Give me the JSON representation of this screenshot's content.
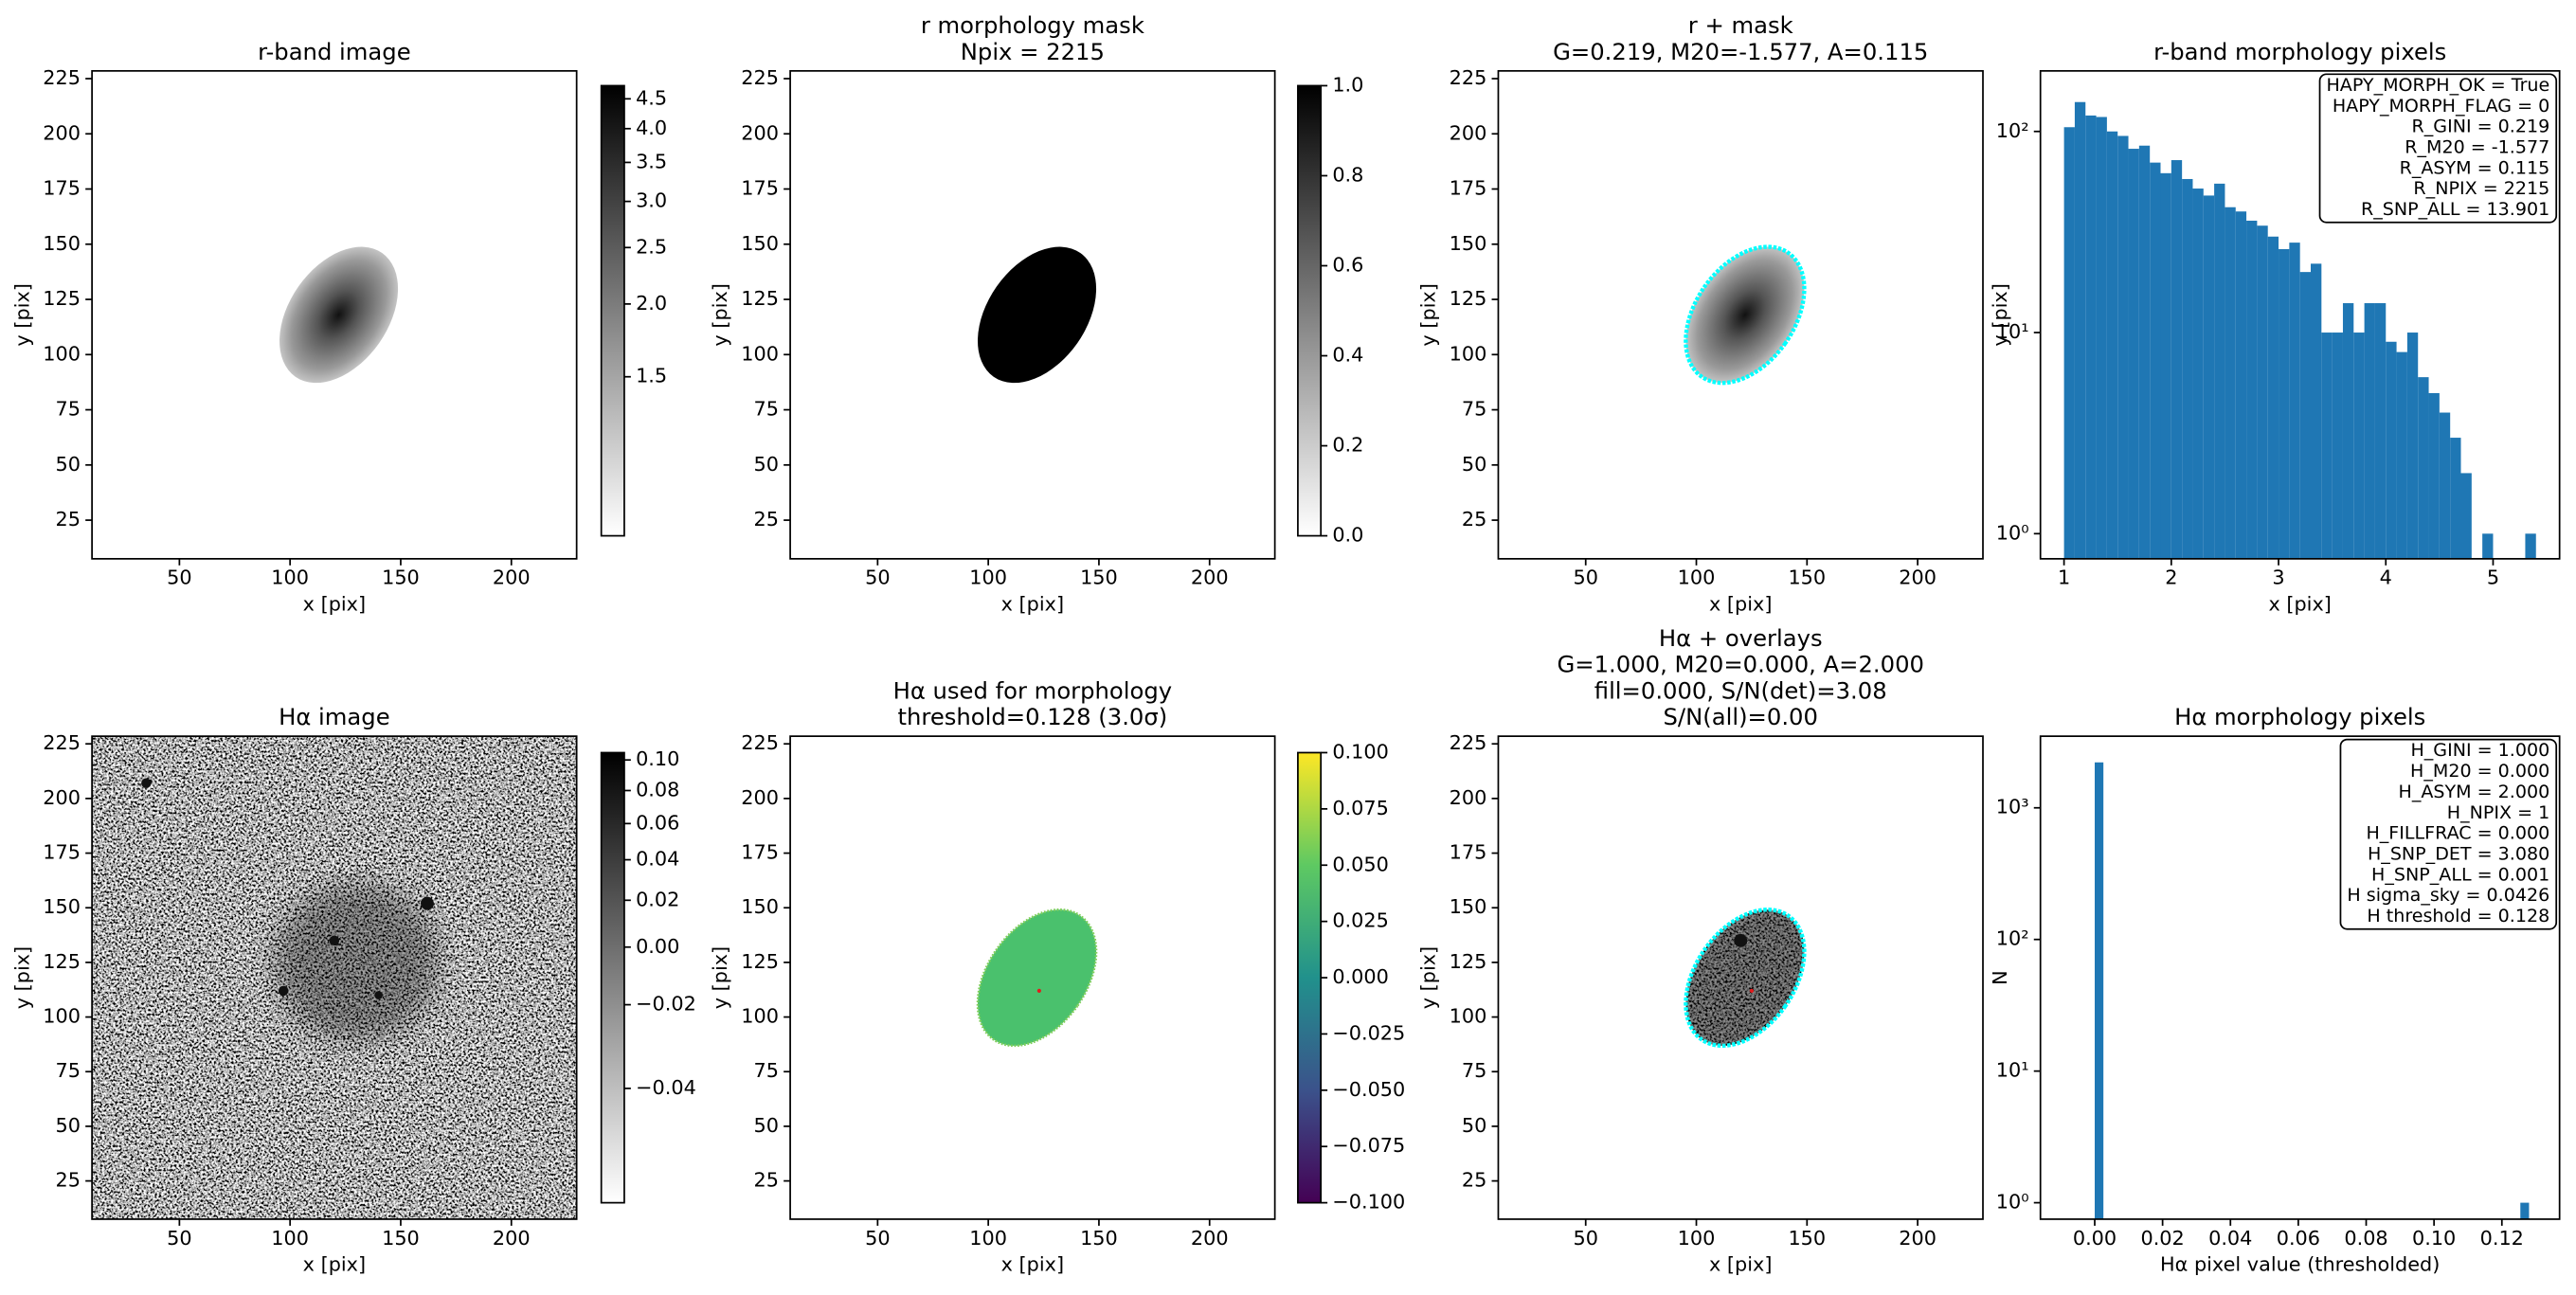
{
  "chart_data": [
    {
      "type": "image",
      "title": "r-band image",
      "xlabel": "x [pix]",
      "ylabel": "y [pix]",
      "xlim": [
        10.5,
        229.5
      ],
      "ylim": [
        7.5,
        228.5
      ],
      "xticks": [
        50,
        100,
        150,
        200
      ],
      "yticks": [
        25,
        50,
        75,
        100,
        125,
        150,
        175,
        200,
        225
      ],
      "colorbar": {
        "cmap": "gray_r",
        "scale": "log",
        "clim": [
          0.8,
          4.74
        ],
        "ticks": [
          1.5,
          {
            "value": 2,
            "label": "2.0"
          },
          2.5,
          {
            "value": 3,
            "label": "3.0"
          },
          3.5,
          {
            "value": 4,
            "label": "4.0"
          },
          4.5
        ]
      }
    },
    {
      "type": "image",
      "title": [
        "r morphology mask",
        "Npix = 2215"
      ],
      "xlabel": "x [pix]",
      "ylabel": "y [pix]",
      "xlim": [
        10.5,
        229.5
      ],
      "ylim": [
        7.5,
        228.5
      ],
      "xticks": [
        50,
        100,
        150,
        200
      ],
      "yticks": [
        25,
        50,
        75,
        100,
        125,
        150,
        175,
        200,
        225
      ],
      "colorbar": {
        "cmap": "gray_r",
        "scale": "linear",
        "clim": [
          0,
          1
        ],
        "ticks": [
          {
            "value": 0,
            "label": "0.0"
          },
          0.2,
          0.4,
          0.6,
          0.8,
          {
            "value": 1,
            "label": "1.0"
          }
        ]
      }
    },
    {
      "type": "image",
      "title": [
        "r + mask",
        "G=0.219, M20=-1.577, A=0.115"
      ],
      "xlabel": "x [pix]",
      "ylabel": "y [pix]",
      "xlim": [
        10.5,
        229.5
      ],
      "ylim": [
        7.5,
        228.5
      ],
      "xticks": [
        50,
        100,
        150,
        200
      ],
      "yticks": [
        25,
        50,
        75,
        100,
        125,
        150,
        175,
        200,
        225
      ]
    },
    {
      "type": "histogram",
      "title": "r-band morphology pixels",
      "xlabel": "x [pix]",
      "ylabel": "y [pix]",
      "color": "#1f77b4",
      "ylog": true,
      "bins": [
        1.0,
        1.1,
        1.2,
        1.3,
        1.4,
        1.5,
        1.6,
        1.7,
        1.8,
        1.9,
        2.0,
        2.1,
        2.2,
        2.3,
        2.4,
        2.5,
        2.6,
        2.7,
        2.8,
        2.9,
        3.0,
        3.1,
        3.2,
        3.3,
        3.4,
        3.5,
        3.6,
        3.7,
        3.8,
        3.9,
        4.0,
        4.1,
        4.2,
        4.3,
        4.4,
        4.5,
        4.6,
        4.7,
        4.8,
        4.9,
        5.0,
        5.1,
        5.2,
        5.3,
        5.4
      ],
      "values": [
        105,
        140,
        120,
        118,
        100,
        95,
        82,
        85,
        70,
        62,
        72,
        58,
        52,
        48,
        55,
        42,
        40,
        36,
        34,
        30,
        26,
        28,
        20,
        22,
        10,
        10,
        14,
        10,
        14,
        14,
        9,
        8,
        10,
        6,
        5,
        4,
        3,
        2,
        0,
        1,
        0,
        0,
        0,
        1
      ],
      "xlim": [
        0.78,
        5.62
      ],
      "ylim": [
        0.75,
        200
      ],
      "xticks": [
        1,
        2,
        3,
        4,
        5
      ],
      "yticks": [
        {
          "value": 1,
          "label": "10⁰"
        },
        {
          "value": 10,
          "label": "10¹"
        },
        {
          "value": 100,
          "label": "10²"
        }
      ],
      "annotation": [
        "HAPY_MORPH_OK = True",
        "HAPY_MORPH_FLAG = 0",
        "R_GINI = 0.219",
        "R_M20 = -1.577",
        "R_ASYM = 0.115",
        "R_NPIX = 2215",
        "R_SNP_ALL = 13.901"
      ]
    },
    {
      "type": "image",
      "title": "Hα image",
      "xlabel": "x [pix]",
      "ylabel": "y [pix]",
      "xlim": [
        10.5,
        229.5
      ],
      "ylim": [
        7.5,
        228.5
      ],
      "xticks": [
        50,
        100,
        150,
        200
      ],
      "yticks": [
        25,
        50,
        75,
        100,
        125,
        150,
        175,
        200,
        225
      ],
      "colorbar": {
        "cmap": "gray_r",
        "scale": "sqrt",
        "clim": [
          -0.05,
          0.105
        ],
        "ticks": [
          {
            "value": 0.1,
            "label": "0.10"
          },
          0.08,
          0.06,
          0.04,
          0.02,
          {
            "value": 0,
            "label": "0.00"
          },
          {
            "value": -0.02,
            "label": "−0.02"
          },
          {
            "value": -0.04,
            "label": "−0.04"
          }
        ]
      }
    },
    {
      "type": "image",
      "title": [
        "Hα used for morphology",
        "threshold=0.128 (3.0σ)"
      ],
      "xlabel": "x [pix]",
      "ylabel": "y [pix]",
      "xlim": [
        10.5,
        229.5
      ],
      "ylim": [
        7.5,
        228.5
      ],
      "xticks": [
        50,
        100,
        150,
        200
      ],
      "yticks": [
        25,
        50,
        75,
        100,
        125,
        150,
        175,
        200,
        225
      ],
      "colorbar": {
        "cmap": "viridis",
        "scale": "linear",
        "clim": [
          -0.1,
          0.1
        ],
        "ticks": [
          {
            "value": 0.1,
            "label": "0.100"
          },
          0.075,
          {
            "value": 0.05,
            "label": "0.050"
          },
          0.025,
          {
            "value": 0,
            "label": "0.000"
          },
          {
            "value": -0.025,
            "label": "−0.025"
          },
          {
            "value": -0.05,
            "label": "−0.050"
          },
          {
            "value": -0.075,
            "label": "−0.075"
          },
          {
            "value": -0.1,
            "label": "−0.100"
          }
        ]
      }
    },
    {
      "type": "image",
      "title": [
        "Hα + overlays",
        "G=1.000, M20=0.000, A=2.000",
        "fill=0.000, S/N(det)=3.08",
        "S/N(all)=0.00"
      ],
      "xlabel": "x [pix]",
      "ylabel": "y [pix]",
      "xlim": [
        10.5,
        229.5
      ],
      "ylim": [
        7.5,
        228.5
      ],
      "xticks": [
        50,
        100,
        150,
        200
      ],
      "yticks": [
        25,
        50,
        75,
        100,
        125,
        150,
        175,
        200,
        225
      ]
    },
    {
      "type": "histogram",
      "title": "Hα morphology pixels",
      "xlabel": "Hα pixel value (thresholded)",
      "ylabel": "N",
      "color": "#1f77b4",
      "ylog": true,
      "bins": [
        0,
        0.00256,
        0.00512,
        0.00768,
        0.01024,
        0.0128,
        0.01536,
        0.01792,
        0.02048,
        0.02304,
        0.0256,
        0.02816,
        0.03072,
        0.03328,
        0.03584,
        0.0384,
        0.04096,
        0.04352,
        0.04608,
        0.04864,
        0.0512,
        0.05376,
        0.05632,
        0.05888,
        0.06144,
        0.064,
        0.06656,
        0.06912,
        0.07168,
        0.07424,
        0.0768,
        0.07936,
        0.08192,
        0.08448,
        0.08704,
        0.0896,
        0.09216,
        0.09472,
        0.09728,
        0.09984,
        0.1024,
        0.10496,
        0.10752,
        0.11008,
        0.11264,
        0.1152,
        0.11776,
        0.12032,
        0.12288,
        0.12544,
        0.128
      ],
      "values": [
        2214,
        0,
        0,
        0,
        0,
        0,
        0,
        0,
        0,
        0,
        0,
        0,
        0,
        0,
        0,
        0,
        0,
        0,
        0,
        0,
        0,
        0,
        0,
        0,
        0,
        0,
        0,
        0,
        0,
        0,
        0,
        0,
        0,
        0,
        0,
        0,
        0,
        0,
        0,
        0,
        0,
        0,
        0,
        0,
        0,
        0,
        0,
        0,
        0,
        1
      ],
      "xlim": [
        -0.016,
        0.137
      ],
      "ylim": [
        0.75,
        3500
      ],
      "xticks": [
        {
          "value": 0,
          "label": "0.00"
        },
        0.02,
        0.04,
        0.06,
        0.08,
        {
          "value": 0.1,
          "label": "0.10"
        },
        0.12
      ],
      "yticks": [
        {
          "value": 1,
          "label": "10⁰"
        },
        {
          "value": 10,
          "label": "10¹"
        },
        {
          "value": 100,
          "label": "10²"
        },
        {
          "value": 1000,
          "label": "10³"
        }
      ],
      "annotation": [
        "H_GINI = 1.000",
        "H_M20 = 0.000",
        "H_ASYM = 2.000",
        "H_NPIX = 1",
        "H_FILLFRAC = 0.000",
        "H_SNP_DET = 3.080",
        "H_SNP_ALL = 0.001",
        "H sigma_sky = 0.0426",
        "H threshold = 0.128"
      ]
    }
  ]
}
